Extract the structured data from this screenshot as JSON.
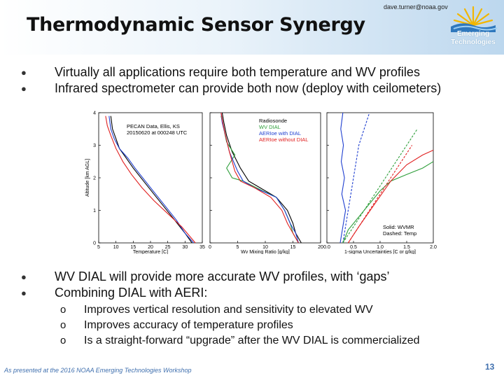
{
  "slide": {
    "title": "Thermodynamic Sensor Synergy",
    "email": "dave.turner@noaa.gov",
    "logo": {
      "line1": "Emerging",
      "line2": "Technologies",
      "icon": "sun-over-waves-logo"
    },
    "bullets_top": [
      "Virtually all applications require both temperature and WV profiles",
      "Infrared spectrometer can provide both now (deploy with ceilometers)"
    ],
    "bullets_bottom": [
      "WV DIAL will provide more accurate WV profiles, with ‘gaps’",
      "Combining DIAL with AERI:"
    ],
    "sub_bullets": [
      "Improves vertical resolution and sensitivity to elevated WV",
      "Improves accuracy of temperature profiles",
      "Is a straight-forward “upgrade” after the WV DIAL is commercialized"
    ],
    "footer": "As presented at the 2016 NOAA Emerging Technologies Workshop",
    "page_number": "13"
  },
  "chart_data": [
    {
      "type": "line",
      "annotations": [
        "PECAN Data, Ellis, KS",
        "20150620 at 000248 UTC"
      ],
      "xlabel": "Temperature [C]",
      "ylabel": "Altitude [km AGL]",
      "xlim": [
        5,
        35
      ],
      "ylim": [
        0,
        4
      ],
      "x_ticks": [
        "5",
        "10",
        "15",
        "20",
        "25",
        "30",
        "35"
      ],
      "y_ticks": [
        "0",
        "1",
        "2",
        "3",
        "4"
      ],
      "series": [
        {
          "color": "#000000",
          "dash": false,
          "x": [
            32,
            30,
            27,
            24,
            21,
            18,
            15,
            13,
            11,
            10,
            9,
            8.5
          ],
          "y": [
            0,
            0.3,
            0.7,
            1.1,
            1.5,
            1.9,
            2.3,
            2.6,
            2.9,
            3.2,
            3.5,
            3.9
          ]
        },
        {
          "color": "#1f3fd0",
          "dash": false,
          "x": [
            32.5,
            30,
            27.5,
            24.5,
            21.5,
            18.5,
            15.5,
            13.5,
            11,
            9.5,
            8.5,
            8
          ],
          "y": [
            0,
            0.3,
            0.7,
            1.1,
            1.5,
            1.9,
            2.3,
            2.6,
            2.9,
            3.2,
            3.5,
            3.9
          ]
        },
        {
          "color": "#e02020",
          "dash": false,
          "x": [
            33,
            29,
            25,
            21,
            17.5,
            14.5,
            12,
            10,
            8.5,
            7.5,
            7
          ],
          "y": [
            0,
            0.5,
            0.9,
            1.3,
            1.7,
            2.1,
            2.5,
            2.9,
            3.3,
            3.6,
            3.9
          ]
        }
      ]
    },
    {
      "type": "line",
      "xlabel": "Wv Mixing Ratio [g/kg]",
      "xlim": [
        0,
        20
      ],
      "ylim": [
        0,
        4
      ],
      "x_ticks": [
        "0",
        "5",
        "10",
        "15",
        "20"
      ],
      "legend": [
        "Radiosonde",
        "WV DIAL",
        "AERIoe with DIAL",
        "AERIoe without DIAL"
      ],
      "legend_colors": [
        "#000000",
        "#2e9e3a",
        "#1f3fd0",
        "#e02020"
      ],
      "series": [
        {
          "name": "Radiosonde",
          "color": "#000000",
          "x": [
            16.5,
            15.5,
            15,
            14,
            12,
            9,
            7,
            5.5,
            4,
            3,
            2.5,
            2.2
          ],
          "y": [
            0,
            0.3,
            0.6,
            1,
            1.4,
            1.7,
            1.9,
            2.3,
            2.8,
            3.3,
            3.7,
            4
          ]
        },
        {
          "name": "WV DIAL",
          "color": "#2e9e3a",
          "x": [
            16,
            15,
            14.5,
            13.5,
            12,
            9.5,
            6,
            4,
            3,
            4.5,
            3,
            2.5,
            2
          ],
          "y": [
            0,
            0.3,
            0.6,
            1,
            1.4,
            1.6,
            1.9,
            2,
            2.3,
            2.7,
            3.1,
            3.5,
            3.9
          ]
        },
        {
          "name": "AERIoe with DIAL",
          "color": "#1f3fd0",
          "x": [
            16,
            15.5,
            14.5,
            13.5,
            12,
            8,
            6,
            5,
            3.5,
            2.8,
            2.2,
            2
          ],
          "y": [
            0,
            0.3,
            0.6,
            1,
            1.4,
            1.7,
            1.9,
            2.2,
            2.8,
            3.3,
            3.7,
            4
          ]
        },
        {
          "name": "AERIoe without DIAL",
          "color": "#e02020",
          "x": [
            16,
            15,
            14,
            13,
            11,
            8,
            5.5,
            4.5,
            3.5,
            2.8,
            2.3,
            2
          ],
          "y": [
            0,
            0.3,
            0.6,
            1,
            1.4,
            1.7,
            1.9,
            2.2,
            2.8,
            3.3,
            3.7,
            4
          ]
        }
      ]
    },
    {
      "type": "line",
      "xlabel": "1-sigma Uncertainties [C or g/kg]",
      "xlim": [
        0,
        2
      ],
      "ylim": [
        0,
        4
      ],
      "x_ticks": [
        "0.0",
        "0.5",
        "1.0",
        "1.5",
        "2.0"
      ],
      "annotations": [
        "Solid: WVMR",
        "Dashed: Temp"
      ],
      "series": [
        {
          "color": "#1f3fd0",
          "dash": false,
          "x": [
            0.25,
            0.3,
            0.35,
            0.28,
            0.33,
            0.27,
            0.31,
            0.26,
            0.3
          ],
          "y": [
            0,
            0.5,
            1,
            1.5,
            2,
            2.5,
            3,
            3.5,
            4
          ]
        },
        {
          "color": "#1f3fd0",
          "dash": true,
          "x": [
            0.3,
            0.35,
            0.4,
            0.45,
            0.5,
            0.55,
            0.6,
            0.7,
            0.8
          ],
          "y": [
            0,
            0.5,
            1,
            1.5,
            2,
            2.5,
            3,
            3.5,
            4
          ]
        },
        {
          "color": "#2e9e3a",
          "dash": false,
          "x": [
            0.3,
            0.4,
            0.6,
            0.8,
            1.0,
            1.2,
            1.5,
            1.8,
            2.0
          ],
          "y": [
            0,
            0.4,
            0.8,
            1.2,
            1.6,
            1.9,
            2.1,
            2.3,
            2.5
          ]
        },
        {
          "color": "#2e9e3a",
          "dash": true,
          "x": [
            0.3,
            0.5,
            0.7,
            0.9,
            1.1,
            1.3,
            1.5,
            1.7
          ],
          "y": [
            0,
            0.5,
            1,
            1.5,
            2,
            2.5,
            3,
            3.5
          ]
        },
        {
          "color": "#e02020",
          "dash": false,
          "x": [
            0.4,
            0.6,
            0.9,
            1.2,
            1.5,
            1.8,
            2.0
          ],
          "y": [
            0,
            0.5,
            1.2,
            1.9,
            2.4,
            2.7,
            2.85
          ]
        },
        {
          "color": "#e02020",
          "dash": true,
          "x": [
            0.4,
            0.6,
            0.8,
            1.0,
            1.2,
            1.4,
            1.6
          ],
          "y": [
            0,
            0.5,
            1,
            1.5,
            2,
            2.5,
            3
          ]
        }
      ]
    }
  ]
}
